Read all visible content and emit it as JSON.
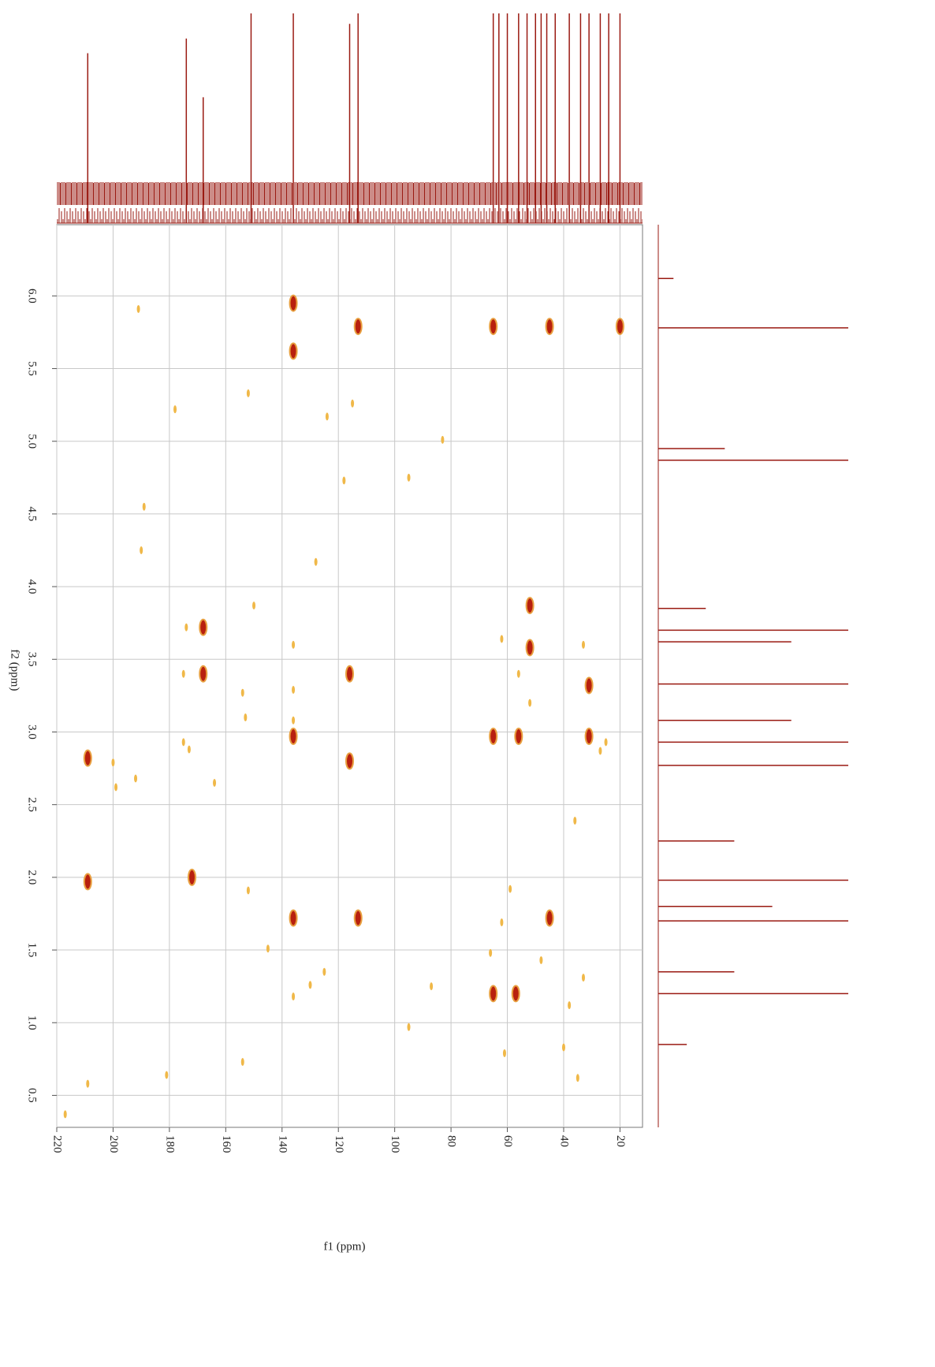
{
  "chart_data": {
    "type": "scatter",
    "xlabel": "f1 (ppm)",
    "ylabel": "f2 (ppm)",
    "xlim": [
      220,
      12
    ],
    "ylim": [
      0.28,
      6.49
    ],
    "xticks": [
      220,
      200,
      180,
      160,
      140,
      120,
      100,
      80,
      60,
      40,
      20
    ],
    "yticks": [
      {
        "value": 0.5,
        "label": "0.5"
      },
      {
        "value": 1,
        "label": "1.0"
      },
      {
        "value": 1.5,
        "label": "1.5"
      },
      {
        "value": 2,
        "label": "2.0"
      },
      {
        "value": 2.5,
        "label": "2.5"
      },
      {
        "value": 3,
        "label": "3.0"
      },
      {
        "value": 3.5,
        "label": "3.5"
      },
      {
        "value": 4,
        "label": "4.0"
      },
      {
        "value": 4.5,
        "label": "4.5"
      },
      {
        "value": 5,
        "label": "5.0"
      },
      {
        "value": 5.5,
        "label": "5.5"
      },
      {
        "value": 6,
        "label": "6.0"
      }
    ],
    "grid": true,
    "series": [
      {
        "color": "#b8200f",
        "x": [
          113,
          65,
          45,
          20,
          168,
          168,
          116,
          31,
          65,
          56,
          31,
          116,
          209,
          172,
          209,
          136,
          113,
          45,
          65,
          57,
          136,
          136,
          136,
          52,
          52
        ],
        "y": [
          5.79,
          5.79,
          5.79,
          5.79,
          3.72,
          3.4,
          3.4,
          3.32,
          2.97,
          2.97,
          2.97,
          2.8,
          2.82,
          2.0,
          1.97,
          1.72,
          1.72,
          1.72,
          1.2,
          1.2,
          2.97,
          5.62,
          5.95,
          3.87,
          3.58
        ]
      },
      {
        "color": "#f0b848",
        "x": [
          191,
          178,
          152,
          124,
          115,
          83,
          95,
          118,
          189,
          190,
          128,
          174,
          136,
          150,
          154,
          175,
          153,
          200,
          192,
          164,
          173,
          175,
          199,
          136,
          136,
          56,
          62,
          52,
          33,
          27,
          25,
          59,
          62,
          66,
          48,
          38,
          33,
          40,
          35,
          152,
          145,
          125,
          87,
          95,
          154,
          181,
          209,
          217,
          61,
          36,
          130,
          136
        ],
        "y": [
          5.91,
          5.22,
          5.33,
          5.17,
          5.26,
          5.01,
          4.75,
          4.73,
          4.55,
          4.25,
          4.17,
          3.72,
          3.6,
          3.87,
          3.27,
          3.4,
          3.1,
          2.79,
          2.68,
          2.65,
          2.88,
          2.93,
          2.62,
          3.29,
          3.08,
          3.4,
          3.64,
          3.2,
          3.6,
          2.87,
          2.93,
          1.92,
          1.69,
          1.48,
          1.43,
          1.12,
          1.31,
          0.83,
          0.62,
          1.91,
          1.51,
          1.35,
          1.25,
          0.97,
          0.73,
          0.64,
          0.58,
          0.37,
          0.79,
          2.39,
          1.26,
          1.18
        ]
      }
    ],
    "top_projection": {
      "x": [
        209,
        174,
        168,
        151,
        136,
        116,
        113,
        65,
        63,
        60,
        56,
        53,
        50,
        48,
        46,
        43,
        38,
        34,
        31,
        27,
        24,
        20
      ],
      "values": [
        81,
        88,
        60,
        100,
        100,
        95,
        100,
        100,
        100,
        100,
        100,
        100,
        100,
        100,
        100,
        100,
        100,
        100,
        100,
        100,
        100,
        100
      ]
    },
    "right_projection": {
      "y": [
        6.12,
        5.78,
        4.95,
        4.87,
        3.85,
        3.7,
        3.62,
        3.33,
        3.08,
        2.93,
        2.77,
        2.25,
        1.98,
        1.8,
        1.7,
        1.35,
        1.2,
        0.85
      ],
      "values": [
        8,
        100,
        35,
        100,
        25,
        100,
        70,
        100,
        70,
        100,
        100,
        40,
        100,
        60,
        100,
        40,
        100,
        15
      ]
    }
  }
}
